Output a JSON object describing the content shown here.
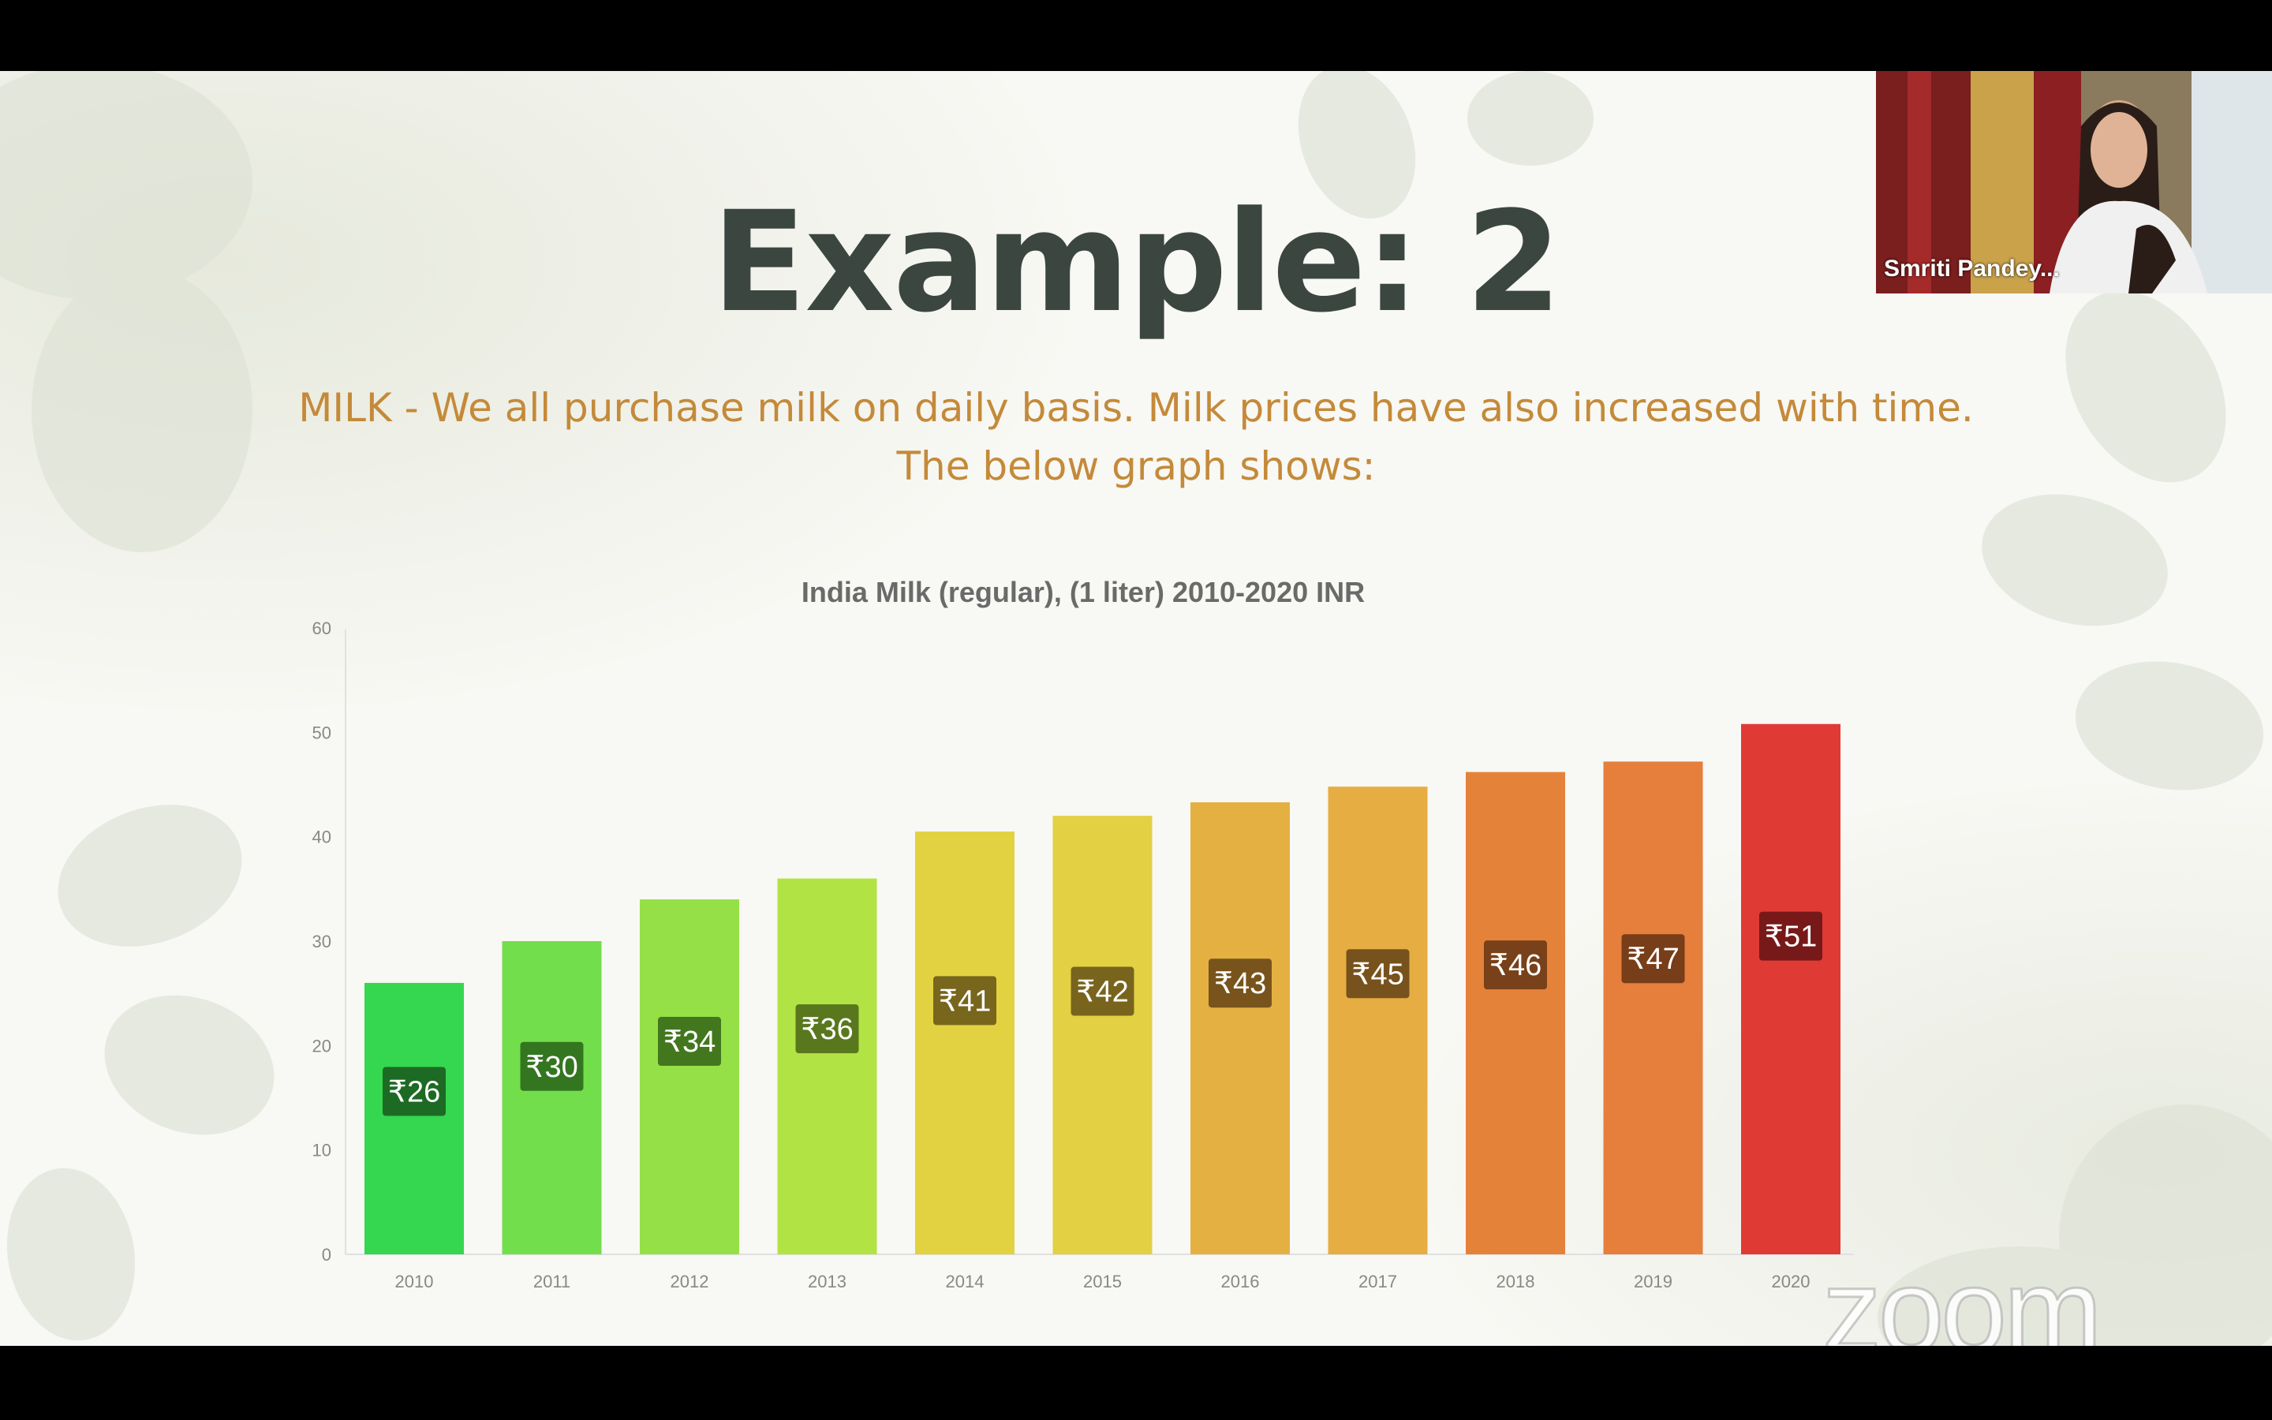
{
  "slide": {
    "title": "Example: 2",
    "subtitle_line1": "MILK - We all purchase milk on daily basis. Milk prices have also increased with time.",
    "subtitle_line2": "The below graph shows:"
  },
  "video_tile": {
    "participant_name": "Smriti Pandey..."
  },
  "watermark": "zoom",
  "chart_data": {
    "type": "bar",
    "title": "India Milk (regular), (1 liter) 2010-2020 INR",
    "xlabel": "",
    "ylabel": "",
    "ylim": [
      0,
      60
    ],
    "yticks": [
      0,
      10,
      20,
      30,
      40,
      50,
      60
    ],
    "categories": [
      "2010",
      "2011",
      "2012",
      "2013",
      "2014",
      "2015",
      "2016",
      "2017",
      "2018",
      "2019",
      "2020"
    ],
    "values": [
      26,
      30,
      34,
      36,
      40.5,
      42,
      43.3,
      44.8,
      46.2,
      47.2,
      50.8
    ],
    "labels": [
      "₹26",
      "₹30",
      "₹34",
      "₹36",
      "₹41",
      "₹42",
      "₹43",
      "₹45",
      "₹46",
      "₹47",
      "₹51"
    ],
    "colors": [
      "#35d650",
      "#73de4c",
      "#95e046",
      "#b2e344",
      "#e2d242",
      "#e3d043",
      "#e5b042",
      "#e6ad43",
      "#e5823a",
      "#e57f3b",
      "#e03a35"
    ],
    "label_bg_colors": [
      "#1b5e1f",
      "#2e6a1c",
      "#3a6b1a",
      "#4f6a1a",
      "#6b5a18",
      "#6b5819",
      "#6b4a18",
      "#6b4818",
      "#6b3a16",
      "#6b3616",
      "#6b1616"
    ],
    "grid": false
  }
}
